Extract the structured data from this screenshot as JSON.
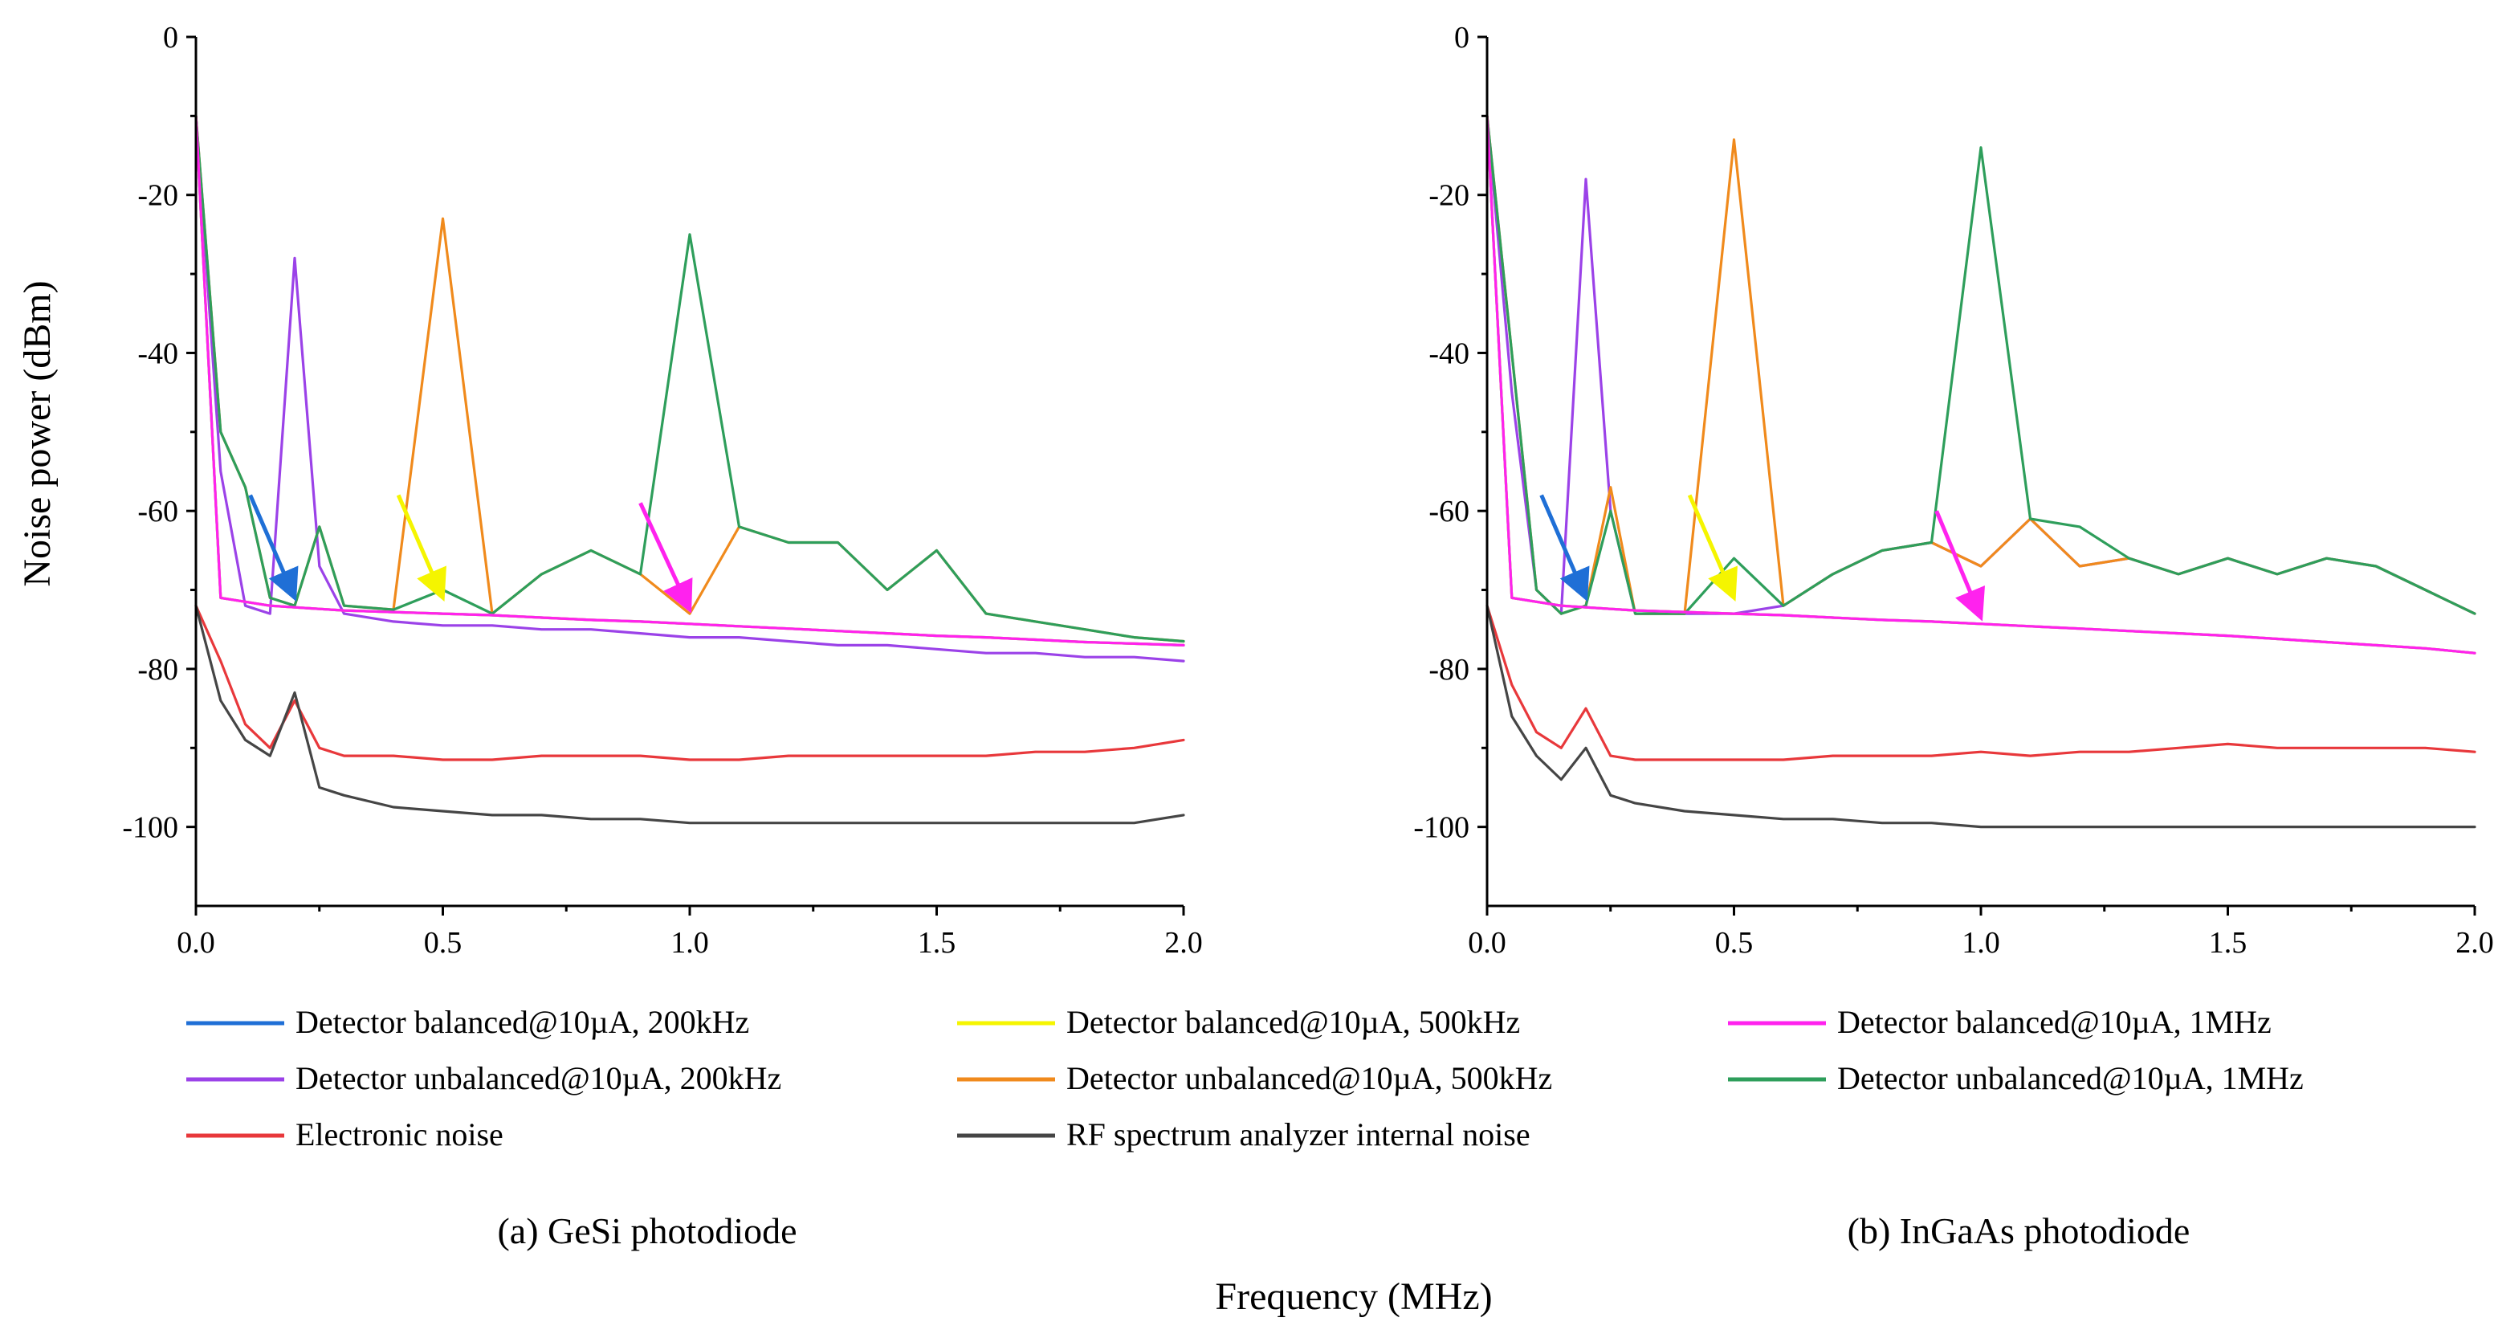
{
  "figure": {
    "ylabel": "Noise power (dBm)",
    "xlabel": "Frequency (MHz)",
    "legend_entries": [
      {
        "label": "Detector balanced@10µA, 200kHz",
        "color": "#1f6fd6"
      },
      {
        "label": "Detector balanced@10µA, 500kHz",
        "color": "#f5f500"
      },
      {
        "label": "Detector balanced@10µA, 1MHz",
        "color": "#ff22ee"
      },
      {
        "label": "Detector unbalanced@10µA, 200kHz",
        "color": "#9b42e8"
      },
      {
        "label": "Detector unbalanced@10µA, 500kHz",
        "color": "#f08a1c"
      },
      {
        "label": "Detector unbalanced@10µA, 1MHz",
        "color": "#2e9e5b"
      },
      {
        "label": "Electronic noise",
        "color": "#e8383b"
      },
      {
        "label": "RF spectrum analyzer internal noise",
        "color": "#454545"
      }
    ]
  },
  "chart_data": [
    {
      "type": "line",
      "caption": "(a) GeSi photodiode",
      "xlabel": "Frequency (MHz)",
      "ylabel": "Noise power (dBm)",
      "xlim": [
        0.0,
        2.0
      ],
      "ylim": [
        -110,
        0
      ],
      "xticks": [
        "0.0",
        "0.5",
        "1.0",
        "1.5",
        "2.0"
      ],
      "yticks": [
        "0",
        "-20",
        "-40",
        "-60",
        "-80",
        "-100"
      ],
      "x": [
        0.0,
        0.05,
        0.1,
        0.15,
        0.2,
        0.25,
        0.3,
        0.4,
        0.5,
        0.6,
        0.7,
        0.8,
        0.9,
        1.0,
        1.1,
        1.2,
        1.3,
        1.4,
        1.5,
        1.6,
        1.7,
        1.8,
        1.9,
        2.0
      ],
      "series": [
        {
          "name": "Detector balanced@10µA, 200kHz",
          "color": "#1f6fd6",
          "values": [
            -10,
            -71,
            -71.5,
            -72,
            -72.2,
            -72.4,
            -72.6,
            -72.8,
            -73,
            -73.2,
            -73.5,
            -73.8,
            -74,
            -74.3,
            -74.6,
            -74.9,
            -75.2,
            -75.5,
            -75.8,
            -76,
            -76.3,
            -76.6,
            -76.8,
            -77
          ]
        },
        {
          "name": "Detector balanced@10µA, 500kHz",
          "color": "#f5f500",
          "values": [
            -10,
            -71,
            -71.5,
            -72,
            -72.2,
            -72.4,
            -72.6,
            -72.8,
            -73,
            -73.2,
            -73.5,
            -73.8,
            -74,
            -74.3,
            -74.6,
            -74.9,
            -75.2,
            -75.5,
            -75.8,
            -76,
            -76.3,
            -76.6,
            -76.8,
            -77
          ]
        },
        {
          "name": "Detector balanced@10µA, 1MHz",
          "color": "#ff22ee",
          "values": [
            -10,
            -71,
            -71.5,
            -72,
            -72.2,
            -72.4,
            -72.6,
            -72.8,
            -73,
            -73.2,
            -73.5,
            -73.8,
            -74,
            -74.3,
            -74.6,
            -74.9,
            -75.2,
            -75.5,
            -75.8,
            -76,
            -76.3,
            -76.6,
            -76.8,
            -77
          ]
        },
        {
          "name": "Detector unbalanced@10µA, 200kHz",
          "color": "#9b42e8",
          "values": [
            -10,
            -55,
            -72,
            -73,
            -28,
            -67,
            -73,
            -74,
            -74.5,
            -74.5,
            -75,
            -75,
            -75.5,
            -76,
            -76,
            -76.5,
            -77,
            -77,
            -77.5,
            -78,
            -78,
            -78.5,
            -78.5,
            -79
          ]
        },
        {
          "name": "Detector unbalanced@10µA, 500kHz",
          "color": "#f08a1c",
          "values": [
            -10,
            -50,
            -57,
            -71,
            -72,
            -62,
            -72,
            -72.5,
            -23,
            -73,
            -68,
            -65,
            -68,
            -73,
            -62,
            -64,
            -64,
            -70,
            -65,
            -73,
            -74,
            -75,
            -76,
            -76.5
          ]
        },
        {
          "name": "Detector unbalanced@10µA, 1MHz",
          "color": "#2e9e5b",
          "values": [
            -10,
            -50,
            -57,
            -71,
            -72,
            -62,
            -72,
            -72.5,
            -70,
            -73,
            -68,
            -65,
            -68,
            -25,
            -62,
            -64,
            -64,
            -70,
            -65,
            -73,
            -74,
            -75,
            -76,
            -76.5
          ]
        },
        {
          "name": "Electronic noise",
          "color": "#e8383b",
          "values": [
            -72,
            -79,
            -87,
            -90,
            -84,
            -90,
            -91,
            -91,
            -91.5,
            -91.5,
            -91,
            -91,
            -91,
            -91.5,
            -91.5,
            -91,
            -91,
            -91,
            -91,
            -91,
            -90.5,
            -90.5,
            -90,
            -89
          ]
        },
        {
          "name": "RF spectrum analyzer internal noise",
          "color": "#454545",
          "values": [
            -72,
            -84,
            -89,
            -91,
            -83,
            -95,
            -96,
            -97.5,
            -98,
            -98.5,
            -98.5,
            -99,
            -99,
            -99.5,
            -99.5,
            -99.5,
            -99.5,
            -99.5,
            -99.5,
            -99.5,
            -99.5,
            -99.5,
            -99.5,
            -98.5
          ]
        }
      ],
      "annotations": [
        {
          "type": "arrow",
          "color": "#1f6fd6",
          "from": [
            0.11,
            -58
          ],
          "to": [
            0.2,
            -71
          ]
        },
        {
          "type": "arrow",
          "color": "#f5f500",
          "from": [
            0.41,
            -58
          ],
          "to": [
            0.5,
            -71
          ]
        },
        {
          "type": "arrow",
          "color": "#ff22ee",
          "from": [
            0.9,
            -59
          ],
          "to": [
            1.0,
            -72.5
          ]
        }
      ]
    },
    {
      "type": "line",
      "caption": "(b) InGaAs photodiode",
      "xlabel": "Frequency (MHz)",
      "ylabel": "Noise power (dBm)",
      "xlim": [
        0.0,
        2.0
      ],
      "ylim": [
        -110,
        0
      ],
      "xticks": [
        "0.0",
        "0.5",
        "1.0",
        "1.5",
        "2.0"
      ],
      "yticks": [
        "0",
        "-20",
        "-40",
        "-60",
        "-80",
        "-100"
      ],
      "x": [
        0.0,
        0.05,
        0.1,
        0.15,
        0.2,
        0.25,
        0.3,
        0.4,
        0.5,
        0.6,
        0.7,
        0.8,
        0.9,
        1.0,
        1.1,
        1.2,
        1.3,
        1.4,
        1.5,
        1.6,
        1.7,
        1.8,
        1.9,
        2.0
      ],
      "series": [
        {
          "name": "Detector balanced@10µA, 200kHz",
          "color": "#1f6fd6",
          "values": [
            -10,
            -71,
            -71.5,
            -72,
            -72.2,
            -72.4,
            -72.6,
            -72.8,
            -73,
            -73.2,
            -73.5,
            -73.8,
            -74,
            -74.3,
            -74.6,
            -74.9,
            -75.2,
            -75.5,
            -75.8,
            -76.2,
            -76.6,
            -77,
            -77.4,
            -78
          ]
        },
        {
          "name": "Detector balanced@10µA, 500kHz",
          "color": "#f5f500",
          "values": [
            -10,
            -71,
            -71.5,
            -72,
            -72.2,
            -72.4,
            -72.6,
            -72.8,
            -73,
            -73.2,
            -73.5,
            -73.8,
            -74,
            -74.3,
            -74.6,
            -74.9,
            -75.2,
            -75.5,
            -75.8,
            -76.2,
            -76.6,
            -77,
            -77.4,
            -78
          ]
        },
        {
          "name": "Detector balanced@10µA, 1MHz",
          "color": "#ff22ee",
          "values": [
            -10,
            -71,
            -71.5,
            -72,
            -72.2,
            -72.4,
            -72.6,
            -72.8,
            -73,
            -73.2,
            -73.5,
            -73.8,
            -74,
            -74.3,
            -74.6,
            -74.9,
            -75.2,
            -75.5,
            -75.8,
            -76.2,
            -76.6,
            -77,
            -77.4,
            -78
          ]
        },
        {
          "name": "Detector unbalanced@10µA, 200kHz",
          "color": "#9b42e8",
          "values": [
            -10,
            -45,
            -70,
            -73,
            -18,
            -60,
            -73,
            -73,
            -73,
            -72,
            -68,
            -65,
            -64,
            -67,
            -61,
            -67,
            -66,
            -68,
            -66,
            -68,
            -66,
            -67,
            -70,
            -73
          ]
        },
        {
          "name": "Detector unbalanced@10µA, 500kHz",
          "color": "#f08a1c",
          "values": [
            -10,
            -40,
            -70,
            -73,
            -72,
            -57,
            -73,
            -73,
            -13,
            -72,
            -68,
            -65,
            -64,
            -67,
            -61,
            -67,
            -66,
            -68,
            -66,
            -68,
            -66,
            -67,
            -70,
            -73
          ]
        },
        {
          "name": "Detector unbalanced@10µA, 1MHz",
          "color": "#2e9e5b",
          "values": [
            -10,
            -40,
            -70,
            -73,
            -72,
            -60,
            -73,
            -73,
            -66,
            -72,
            -68,
            -65,
            -64,
            -14,
            -61,
            -62,
            -66,
            -68,
            -66,
            -68,
            -66,
            -67,
            -70,
            -73
          ]
        },
        {
          "name": "Electronic noise",
          "color": "#e8383b",
          "values": [
            -72,
            -82,
            -88,
            -90,
            -85,
            -91,
            -91.5,
            -91.5,
            -91.5,
            -91.5,
            -91,
            -91,
            -91,
            -90.5,
            -91,
            -90.5,
            -90.5,
            -90,
            -89.5,
            -90,
            -90,
            -90,
            -90,
            -90.5
          ]
        },
        {
          "name": "RF spectrum analyzer internal noise",
          "color": "#454545",
          "values": [
            -72,
            -86,
            -91,
            -94,
            -90,
            -96,
            -97,
            -98,
            -98.5,
            -99,
            -99,
            -99.5,
            -99.5,
            -100,
            -100,
            -100,
            -100,
            -100,
            -100,
            -100,
            -100,
            -100,
            -100,
            -100
          ]
        }
      ],
      "annotations": [
        {
          "type": "arrow",
          "color": "#1f6fd6",
          "from": [
            0.11,
            -58
          ],
          "to": [
            0.2,
            -71
          ]
        },
        {
          "type": "arrow",
          "color": "#f5f500",
          "from": [
            0.41,
            -58
          ],
          "to": [
            0.5,
            -71
          ]
        },
        {
          "type": "arrow",
          "color": "#ff22ee",
          "from": [
            0.91,
            -60
          ],
          "to": [
            1.0,
            -73.5
          ]
        }
      ]
    }
  ]
}
